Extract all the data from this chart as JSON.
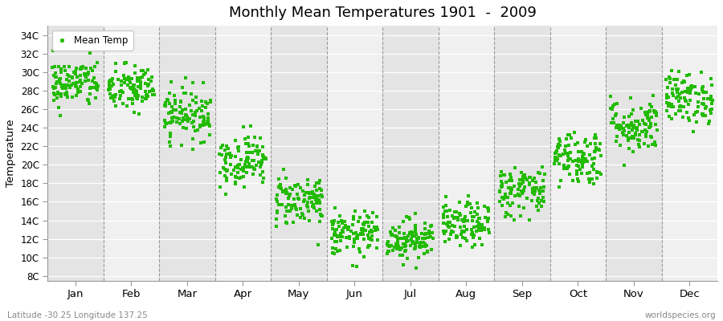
{
  "title": "Monthly Mean Temperatures 1901  -  2009",
  "ylabel": "Temperature",
  "ytick_labels": [
    "8C",
    "10C",
    "12C",
    "14C",
    "16C",
    "18C",
    "20C",
    "22C",
    "24C",
    "26C",
    "28C",
    "30C",
    "32C",
    "34C"
  ],
  "ytick_values": [
    8,
    10,
    12,
    14,
    16,
    18,
    20,
    22,
    24,
    26,
    28,
    30,
    32,
    34
  ],
  "ylim": [
    7.5,
    35
  ],
  "months": [
    "Jan",
    "Feb",
    "Mar",
    "Apr",
    "May",
    "Jun",
    "Jul",
    "Aug",
    "Sep",
    "Oct",
    "Nov",
    "Dec"
  ],
  "dot_color": "#22bb00",
  "dot_size": 7,
  "background_color": "#ffffff",
  "stripe_color_dark": "#e4e4e4",
  "stripe_color_light": "#f0f0f0",
  "vline_color": "#999999",
  "legend_label": "Mean Temp",
  "footnote_left": "Latitude -30.25 Longitude 137.25",
  "footnote_right": "worldspecies.org",
  "monthly_means": [
    28.8,
    28.2,
    25.5,
    20.5,
    16.2,
    12.5,
    12.0,
    13.5,
    17.2,
    20.8,
    24.2,
    27.2
  ],
  "monthly_stds": [
    1.3,
    1.3,
    1.4,
    1.4,
    1.4,
    1.2,
    1.1,
    1.2,
    1.4,
    1.5,
    1.5,
    1.4
  ],
  "n_years": 109
}
